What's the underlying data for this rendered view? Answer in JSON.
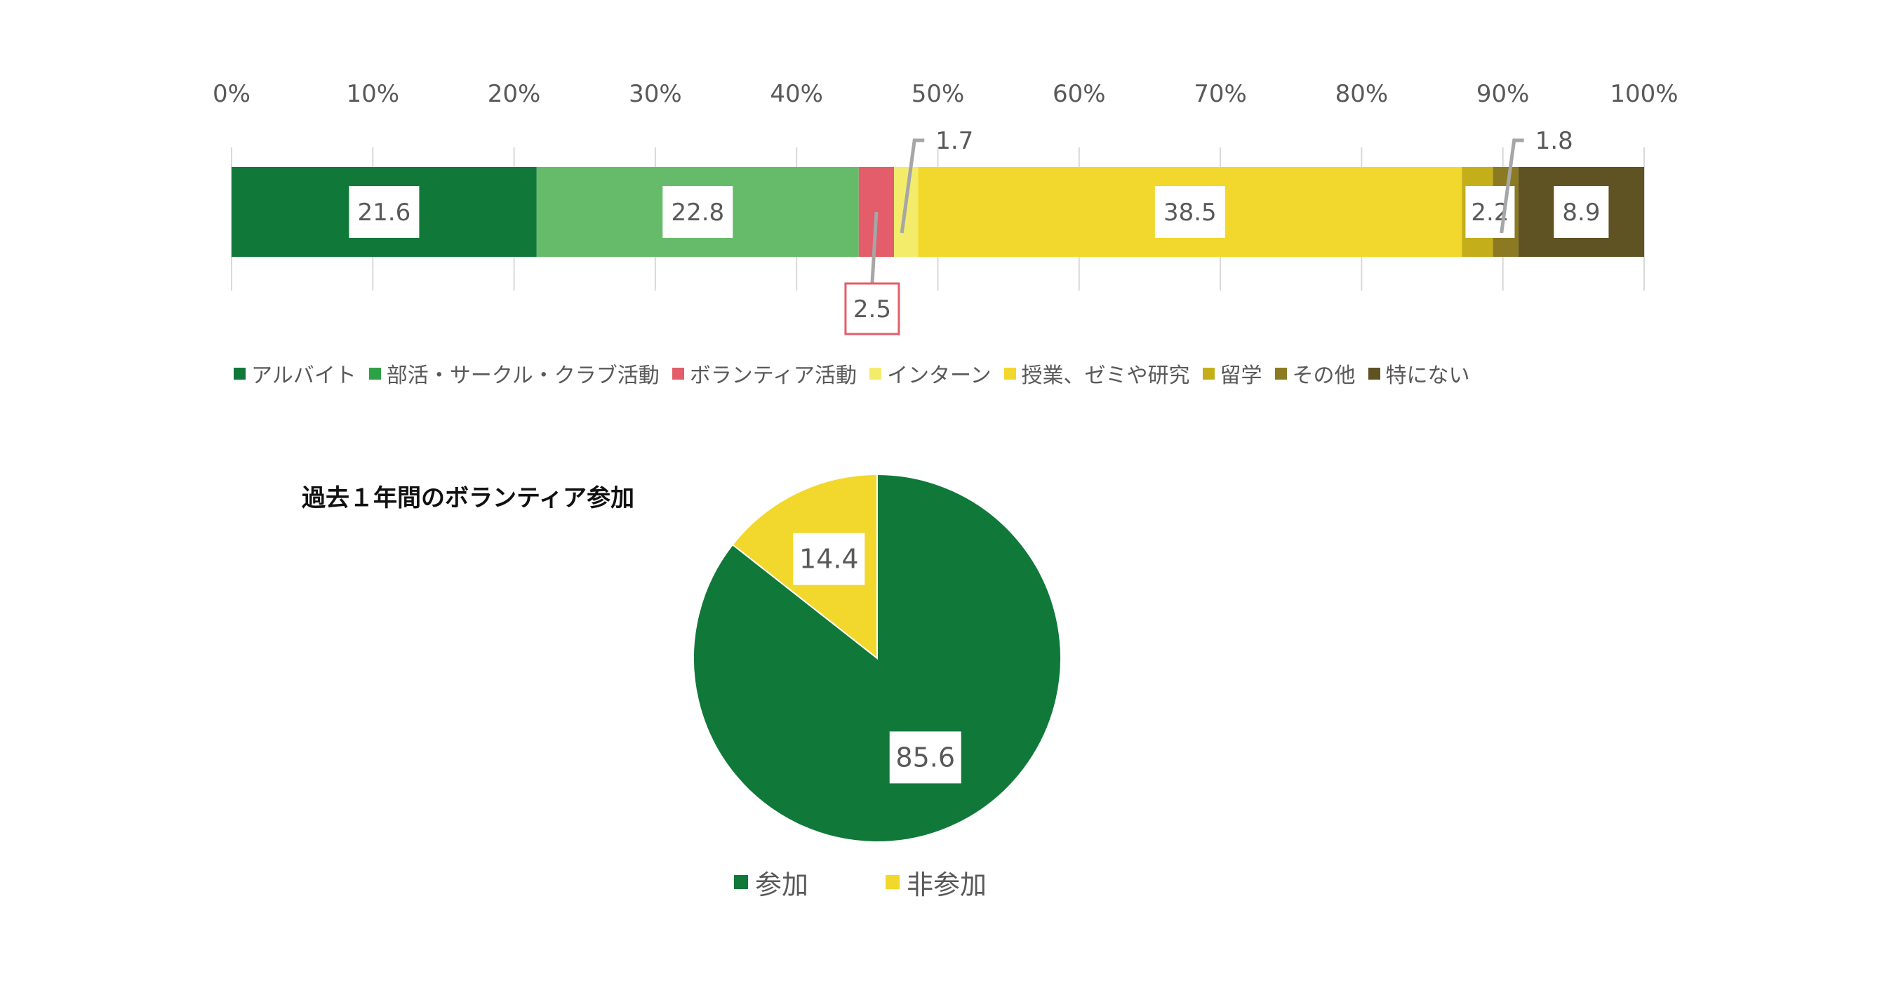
{
  "chart_data": [
    {
      "type": "bar",
      "orientation": "horizontal",
      "stacked": true,
      "percent_axis": true,
      "xlim": [
        0,
        100
      ],
      "x_ticks": [
        "0%",
        "10%",
        "20%",
        "30%",
        "40%",
        "50%",
        "60%",
        "70%",
        "80%",
        "90%",
        "100%"
      ],
      "grid": true,
      "legend_position": "bottom",
      "series": [
        {
          "name": "アルバイト",
          "value": 21.6,
          "label": "21.6",
          "color": "#10793A"
        },
        {
          "name": "部活・サークル・クラブ活動",
          "value": 22.8,
          "label": "22.8",
          "color": "#65BB6A"
        },
        {
          "name": "ボランティア活動",
          "value": 2.5,
          "label": "2.5",
          "color": "#E35D6A"
        },
        {
          "name": "インターン",
          "value": 1.7,
          "label": "1.7",
          "color": "#F3EC6B"
        },
        {
          "name": "授業、ゼミや研究",
          "value": 38.5,
          "label": "38.5",
          "color": "#F2D82C"
        },
        {
          "name": "留学",
          "value": 2.2,
          "label": "2.2",
          "color": "#C4AF1B"
        },
        {
          "name": "その他",
          "value": 1.8,
          "label": "1.8",
          "color": "#8C7A22"
        },
        {
          "name": "特にない",
          "value": 8.9,
          "label": "8.9",
          "color": "#5F5223"
        }
      ],
      "legend_swatch_colors": [
        "#10793A",
        "#2EA046",
        "#E35D6A",
        "#F3EC6B",
        "#F2D82C",
        "#C4AF1B",
        "#8C7A22",
        "#5F5223"
      ]
    },
    {
      "type": "pie",
      "title": "過去１年間のボランティア参加",
      "legend_position": "bottom",
      "slices": [
        {
          "name": "参加",
          "value": 85.6,
          "label": "85.6",
          "color": "#10793A"
        },
        {
          "name": "非参加",
          "value": 14.4,
          "label": "14.4",
          "color": "#F2D82C"
        }
      ]
    }
  ]
}
